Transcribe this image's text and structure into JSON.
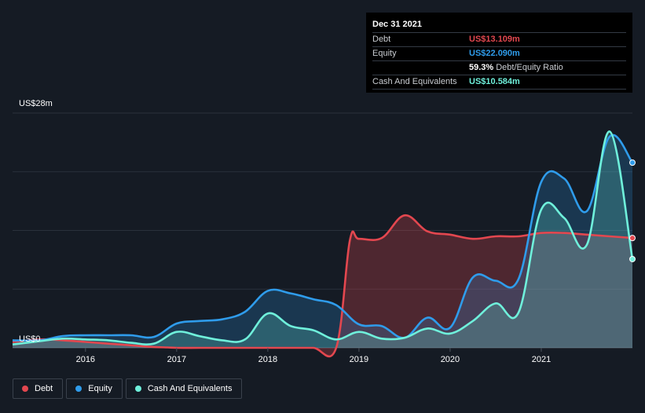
{
  "tooltip": {
    "date": "Dec 31 2021",
    "rows": [
      {
        "key": "Debt",
        "value": "US$13.109m",
        "color": "#e3474f"
      },
      {
        "key": "Equity",
        "value": "US$22.090m",
        "color": "#2f9ceb"
      },
      {
        "key": "",
        "value": "59.3%",
        "extra": "Debt/Equity Ratio",
        "color": "#ffffff"
      },
      {
        "key": "Cash And Equivalents",
        "value": "US$10.584m",
        "color": "#6ff0db"
      }
    ]
  },
  "legend": [
    {
      "label": "Debt",
      "color": "#e3474f"
    },
    {
      "label": "Equity",
      "color": "#2f9ceb"
    },
    {
      "label": "Cash And Equivalents",
      "color": "#6ff0db"
    }
  ],
  "chart_data": {
    "type": "area",
    "y_axis_labels": {
      "top": "US$28m",
      "bottom": "US$0"
    },
    "ylim": [
      0,
      28
    ],
    "xlim": [
      2015.2,
      2022.0
    ],
    "x_tick_labels": [
      "2016",
      "2017",
      "2018",
      "2019",
      "2020",
      "2021"
    ],
    "x_ticks": [
      2016,
      2017,
      2018,
      2019,
      2020,
      2021
    ],
    "grid": true,
    "legend_placement": "bottom-left",
    "series": [
      {
        "name": "Debt",
        "color": "#e3474f",
        "x": [
          2015.2,
          2015.5,
          2015.75,
          2016.0,
          2016.25,
          2016.5,
          2016.75,
          2016.9,
          2017.0,
          2017.25,
          2017.5,
          2017.75,
          2018.0,
          2018.25,
          2018.5,
          2018.75,
          2018.9,
          2019.0,
          2019.25,
          2019.5,
          2019.75,
          2020.0,
          2020.25,
          2020.5,
          2020.75,
          2021.0,
          2021.25,
          2021.5,
          2021.75,
          2022.0
        ],
        "values": [
          0.7,
          1.0,
          0.9,
          0.7,
          0.5,
          0.3,
          0.1,
          0.05,
          0.0,
          0.0,
          0.0,
          0.0,
          0.0,
          0.0,
          0.0,
          0.0,
          12.8,
          13.0,
          13.1,
          15.8,
          13.9,
          13.5,
          13.0,
          13.3,
          13.3,
          13.7,
          13.7,
          13.5,
          13.3,
          13.1
        ]
      },
      {
        "name": "Equity",
        "color": "#2f9ceb",
        "x": [
          2015.2,
          2015.5,
          2015.75,
          2016.0,
          2016.25,
          2016.5,
          2016.75,
          2017.0,
          2017.25,
          2017.5,
          2017.75,
          2018.0,
          2018.25,
          2018.5,
          2018.75,
          2019.0,
          2019.25,
          2019.5,
          2019.75,
          2020.0,
          2020.25,
          2020.5,
          2020.75,
          2021.0,
          2021.25,
          2021.5,
          2021.75,
          2022.0
        ],
        "values": [
          0.9,
          0.9,
          1.4,
          1.5,
          1.5,
          1.5,
          1.3,
          2.9,
          3.2,
          3.4,
          4.3,
          6.8,
          6.5,
          5.8,
          5.1,
          2.8,
          2.6,
          1.2,
          3.6,
          2.4,
          8.4,
          8.0,
          8.2,
          19.8,
          20.2,
          16.3,
          25.2,
          22.09
        ]
      },
      {
        "name": "Cash And Equivalents",
        "color": "#6ff0db",
        "x": [
          2015.2,
          2015.5,
          2015.75,
          2016.0,
          2016.25,
          2016.5,
          2016.75,
          2017.0,
          2017.25,
          2017.5,
          2017.75,
          2018.0,
          2018.25,
          2018.5,
          2018.75,
          2019.0,
          2019.25,
          2019.5,
          2019.75,
          2020.0,
          2020.25,
          2020.5,
          2020.75,
          2021.0,
          2021.25,
          2021.5,
          2021.75,
          2022.0
        ],
        "values": [
          0.4,
          0.8,
          1.1,
          1.0,
          0.9,
          0.6,
          0.5,
          1.9,
          1.4,
          0.9,
          1.0,
          4.1,
          2.6,
          2.1,
          1.0,
          1.9,
          1.1,
          1.2,
          2.3,
          1.7,
          3.2,
          5.3,
          4.2,
          16.5,
          15.5,
          12.3,
          25.8,
          10.584
        ]
      }
    ]
  }
}
